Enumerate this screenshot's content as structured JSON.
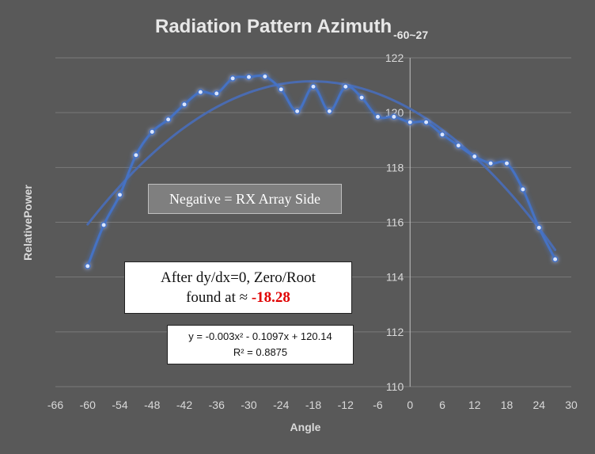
{
  "chart_data": {
    "type": "scatter",
    "title": "Radiation Pattern Azimuth",
    "title_subscript": "-60~27",
    "xlabel": "Angle",
    "ylabel": "RelativePower",
    "xlim": [
      -66,
      30
    ],
    "ylim": [
      110,
      122
    ],
    "x_ticks": [
      "-66",
      "-60",
      "-54",
      "-48",
      "-42",
      "-36",
      "-30",
      "-24",
      "-18",
      "-12",
      "-6",
      "0",
      "6",
      "12",
      "18",
      "24",
      "30"
    ],
    "y_ticks": [
      "110",
      "112",
      "114",
      "116",
      "118",
      "120",
      "122"
    ],
    "grid": true,
    "legend": "none",
    "colors": {
      "series": "#4472c4",
      "trendline": "#4a6bb0",
      "glow": "#8fb4ff",
      "background": "#595959",
      "gridline": "#7a7a7a",
      "root_value": "#e00000"
    },
    "series": [
      {
        "x": [
          -60,
          -57,
          -54,
          -51,
          -48,
          -45,
          -42,
          -39,
          -36,
          -33,
          -30,
          -27,
          -24,
          -21,
          -18,
          -15,
          -12,
          -9,
          -6,
          -3,
          0,
          3,
          6,
          9,
          12,
          15,
          18,
          21,
          24,
          27
        ],
        "y": [
          114.4,
          115.9,
          117.0,
          118.45,
          119.3,
          119.75,
          120.3,
          120.75,
          120.7,
          121.25,
          121.3,
          121.32,
          120.85,
          120.05,
          120.95,
          120.05,
          120.95,
          120.55,
          119.85,
          119.85,
          119.65,
          119.65,
          119.2,
          118.8,
          118.4,
          118.15,
          118.15,
          117.2,
          115.8,
          114.65
        ],
        "line": "smooth",
        "markers": true
      }
    ],
    "trendline": {
      "type": "polynomial",
      "order": 2,
      "coefficients": [
        -0.003,
        -0.1097,
        120.14
      ],
      "x_range": [
        -60,
        27
      ]
    },
    "annotations": {
      "negative_note": "Negative = RX Array Side",
      "root_note_line1": "After dy/dx=0, Zero/Root",
      "root_note_line2_prefix": "found at ≈ ",
      "root_value": "-18.28",
      "equation": "y = -0.003x² - 0.1097x + 120.14",
      "r_squared": "R² = 0.8875"
    }
  }
}
